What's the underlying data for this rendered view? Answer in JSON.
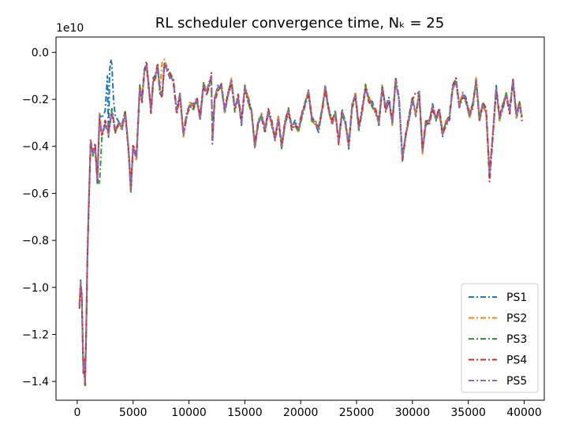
{
  "chart_data": {
    "type": "line",
    "title": "RL scheduler convergence time, Nₖ = 25",
    "xlabel": "",
    "ylabel": "",
    "y_offset_label": "1e10",
    "xlim": [
      -1900,
      41800
    ],
    "ylim": [
      -1.48,
      0.065
    ],
    "x_ticks": [
      0,
      5000,
      10000,
      15000,
      20000,
      25000,
      30000,
      35000,
      40000
    ],
    "x_tick_labels": [
      "0",
      "5000",
      "10000",
      "15000",
      "20000",
      "25000",
      "30000",
      "35000",
      "40000"
    ],
    "y_ticks": [
      0.0,
      -0.2,
      -0.4,
      -0.6,
      -0.8,
      -1.0,
      -1.2,
      -1.4
    ],
    "y_tick_labels": [
      "0.0",
      "−0.2",
      "−0.4",
      "−0.6",
      "−0.8",
      "−1.0",
      "−1.2",
      "−1.4"
    ],
    "grid": false,
    "legend_position": "lower-right",
    "line_style": "dash-dot",
    "base_curve": {
      "x": [
        200,
        300,
        400,
        500,
        550,
        600,
        700,
        800,
        900,
        1000,
        1200,
        1400,
        1600,
        1800,
        2000,
        2200,
        2500,
        2800,
        3100,
        3400,
        3700,
        4000,
        4300,
        4600,
        4800,
        5000,
        5300,
        5600,
        5800,
        6000,
        6200,
        6400,
        6600,
        6800,
        7000,
        7200,
        7400,
        7600,
        7800,
        8000,
        8300,
        8600,
        8900,
        9200,
        9500,
        9800,
        10100,
        10400,
        10700,
        11000,
        11300,
        11600,
        11900,
        12000,
        12100,
        12300,
        12600,
        12900,
        13200,
        13500,
        13800,
        14100,
        14400,
        14700,
        15000,
        15300,
        15600,
        15900,
        16200,
        16500,
        16800,
        17100,
        17400,
        17700,
        18000,
        18300,
        18600,
        18900,
        19200,
        19500,
        19800,
        20100,
        20400,
        20700,
        21000,
        21300,
        21600,
        21900,
        22200,
        22500,
        22800,
        23100,
        23400,
        23700,
        24000,
        24300,
        24600,
        24900,
        25200,
        25500,
        25800,
        26100,
        26400,
        26700,
        27000,
        27300,
        27600,
        27900,
        28200,
        28500,
        28800,
        29100,
        29400,
        29700,
        30000,
        30300,
        30600,
        30900,
        31200,
        31500,
        31800,
        32100,
        32400,
        32700,
        33000,
        33300,
        33600,
        33900,
        34200,
        34500,
        34800,
        35100,
        35400,
        35700,
        36000,
        36300,
        36600,
        36900,
        37200,
        37500,
        37800,
        38100,
        38400,
        38700,
        39000,
        39300,
        39600,
        39800
      ],
      "y": [
        -1.08,
        -0.98,
        -1.03,
        -1.25,
        -1.36,
        -1.31,
        -1.41,
        -1.2,
        -0.9,
        -0.7,
        -0.38,
        -0.43,
        -0.4,
        -0.55,
        -0.27,
        -0.35,
        -0.3,
        -0.35,
        -0.25,
        -0.33,
        -0.3,
        -0.32,
        -0.26,
        -0.42,
        -0.58,
        -0.4,
        -0.45,
        -0.15,
        -0.2,
        -0.08,
        -0.05,
        -0.15,
        -0.25,
        -0.12,
        -0.1,
        -0.06,
        -0.17,
        -0.18,
        -0.05,
        -0.07,
        -0.1,
        -0.12,
        -0.25,
        -0.18,
        -0.35,
        -0.27,
        -0.22,
        -0.23,
        -0.2,
        -0.28,
        -0.14,
        -0.17,
        -0.12,
        -0.1,
        -0.38,
        -0.2,
        -0.15,
        -0.14,
        -0.25,
        -0.18,
        -0.12,
        -0.24,
        -0.19,
        -0.3,
        -0.15,
        -0.2,
        -0.25,
        -0.4,
        -0.3,
        -0.27,
        -0.33,
        -0.25,
        -0.3,
        -0.37,
        -0.28,
        -0.4,
        -0.3,
        -0.25,
        -0.32,
        -0.3,
        -0.33,
        -0.27,
        -0.22,
        -0.17,
        -0.28,
        -0.3,
        -0.33,
        -0.25,
        -0.15,
        -0.24,
        -0.3,
        -0.26,
        -0.38,
        -0.25,
        -0.3,
        -0.4,
        -0.23,
        -0.18,
        -0.32,
        -0.25,
        -0.15,
        -0.2,
        -0.22,
        -0.25,
        -0.3,
        -0.15,
        -0.24,
        -0.2,
        -0.3,
        -0.12,
        -0.2,
        -0.45,
        -0.35,
        -0.28,
        -0.2,
        -0.27,
        -0.17,
        -0.42,
        -0.3,
        -0.3,
        -0.23,
        -0.28,
        -0.25,
        -0.35,
        -0.3,
        -0.28,
        -0.15,
        -0.12,
        -0.23,
        -0.18,
        -0.2,
        -0.27,
        -0.23,
        -0.12,
        -0.28,
        -0.22,
        -0.25,
        -0.52,
        -0.35,
        -0.15,
        -0.28,
        -0.23,
        -0.18,
        -0.25,
        -0.12,
        -0.27,
        -0.22,
        -0.28
      ]
    },
    "series": [
      {
        "name": "PS1",
        "color": "#1f77b4",
        "overrides": [
          [
            2200,
            -0.28
          ],
          [
            2500,
            -0.25
          ],
          [
            2700,
            -0.1
          ],
          [
            2900,
            -0.08
          ],
          [
            3000,
            -0.03
          ],
          [
            3100,
            -0.05
          ],
          [
            3250,
            -0.2
          ],
          [
            3400,
            -0.27
          ]
        ],
        "jitter": 0.011,
        "phase": 0.3
      },
      {
        "name": "PS2",
        "color": "#ff7f0e",
        "overrides": [
          [
            7600,
            -0.04
          ],
          [
            7800,
            -0.03
          ],
          [
            8000,
            -0.06
          ]
        ],
        "jitter": 0.012,
        "phase": 1.7
      },
      {
        "name": "PS3",
        "color": "#2ca02c",
        "overrides": [
          [
            2000,
            -0.56
          ],
          [
            4800,
            -0.6
          ]
        ],
        "jitter": 0.014,
        "phase": 2.9
      },
      {
        "name": "PS4",
        "color": "#d62728",
        "overrides": [
          [
            36900,
            -0.55
          ],
          [
            30300,
            -0.17
          ]
        ],
        "jitter": 0.013,
        "phase": 4.1
      },
      {
        "name": "PS5",
        "color": "#9467bd",
        "overrides": [],
        "jitter": 0.0,
        "phase": 0.0
      }
    ]
  }
}
